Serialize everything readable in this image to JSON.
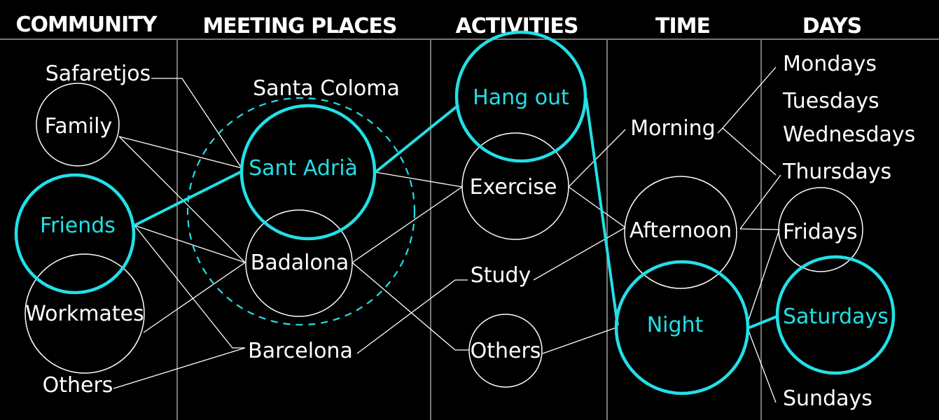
{
  "columns": {
    "community": "COMMUNITY",
    "meeting_places": "MEETING PLACES",
    "activities": "ACTIVITIES",
    "time": "TIME",
    "days": "DAYS"
  },
  "community": {
    "safaretjos": "Safaretjos",
    "family": "Family",
    "friends": "Friends",
    "workmates": "Workmates",
    "others": "Others"
  },
  "places": {
    "santa_coloma": "Santa Coloma",
    "sant_adria": "Sant Adrià",
    "badalona": "Badalona",
    "barcelona": "Barcelona"
  },
  "activities": {
    "hang_out": "Hang out",
    "exercise": "Exercise",
    "study": "Study",
    "others": "Others"
  },
  "time": {
    "morning": "Morning",
    "afternoon": "Afternoon",
    "night": "Night"
  },
  "days": {
    "mondays": "Mondays",
    "tuesdays": "Tuesdays",
    "wednesdays": "Wednesdays",
    "thursdays": "Thursdays",
    "fridays": "Fridays",
    "saturdays": "Saturdays",
    "sundays": "Sundays"
  },
  "colors": {
    "highlight": "#22e0e6",
    "foreground": "#ffffff",
    "background": "#000000",
    "divider": "#777777"
  }
}
